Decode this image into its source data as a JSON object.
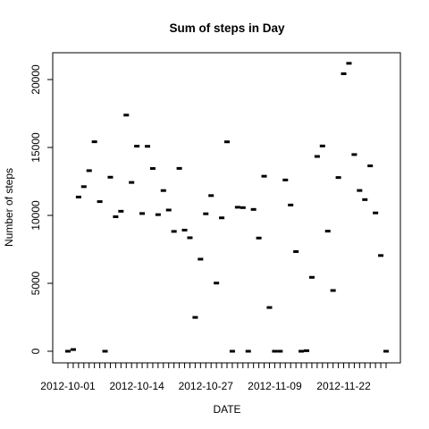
{
  "chart_data": {
    "type": "scatter",
    "title": "Sum of steps in Day",
    "xlabel": "DATE",
    "ylabel": "Number of steps",
    "ylim": [
      0,
      21500
    ],
    "y_ticks": [
      0,
      5000,
      10000,
      15000,
      20000
    ],
    "x_tick_labels": [
      "2012-10-01",
      "2012-10-14",
      "2012-10-27",
      "2012-11-09",
      "2012-11-22"
    ],
    "grid": false,
    "legend": "none",
    "point_color": "#000000",
    "series": [
      {
        "x": [
          "2012-10-01",
          "2012-10-02",
          "2012-10-03",
          "2012-10-04",
          "2012-10-05",
          "2012-10-06",
          "2012-10-07",
          "2012-10-08",
          "2012-10-09",
          "2012-10-10",
          "2012-10-11",
          "2012-10-12",
          "2012-10-13",
          "2012-10-14",
          "2012-10-15",
          "2012-10-16",
          "2012-10-17",
          "2012-10-18",
          "2012-10-19",
          "2012-10-20",
          "2012-10-21",
          "2012-10-22",
          "2012-10-23",
          "2012-10-24",
          "2012-10-25",
          "2012-10-26",
          "2012-10-27",
          "2012-10-28",
          "2012-10-29",
          "2012-10-30",
          "2012-10-31",
          "2012-11-01",
          "2012-11-02",
          "2012-11-03",
          "2012-11-04",
          "2012-11-05",
          "2012-11-06",
          "2012-11-07",
          "2012-11-08",
          "2012-11-09",
          "2012-11-10",
          "2012-11-11",
          "2012-11-12",
          "2012-11-13",
          "2012-11-14",
          "2012-11-15",
          "2012-11-16",
          "2012-11-17",
          "2012-11-18",
          "2012-11-19",
          "2012-11-20",
          "2012-11-21",
          "2012-11-22",
          "2012-11-23",
          "2012-11-24",
          "2012-11-25",
          "2012-11-26",
          "2012-11-27",
          "2012-11-28",
          "2012-11-29",
          "2012-11-30"
        ],
        "values": [
          0,
          126,
          11352,
          12116,
          13294,
          15420,
          11015,
          0,
          12811,
          9900,
          10304,
          17382,
          12426,
          15098,
          10139,
          15084,
          13452,
          10056,
          11829,
          10395,
          8821,
          13460,
          8918,
          8355,
          2492,
          6778,
          10119,
          11458,
          5018,
          9819,
          15414,
          0,
          10600,
          10571,
          0,
          10439,
          8334,
          12883,
          3219,
          0,
          0,
          12608,
          10765,
          7336,
          0,
          41,
          5441,
          14339,
          15110,
          8841,
          4472,
          12787,
          20427,
          21194,
          14478,
          11834,
          11162,
          13646,
          10183,
          7047,
          0
        ]
      }
    ]
  }
}
